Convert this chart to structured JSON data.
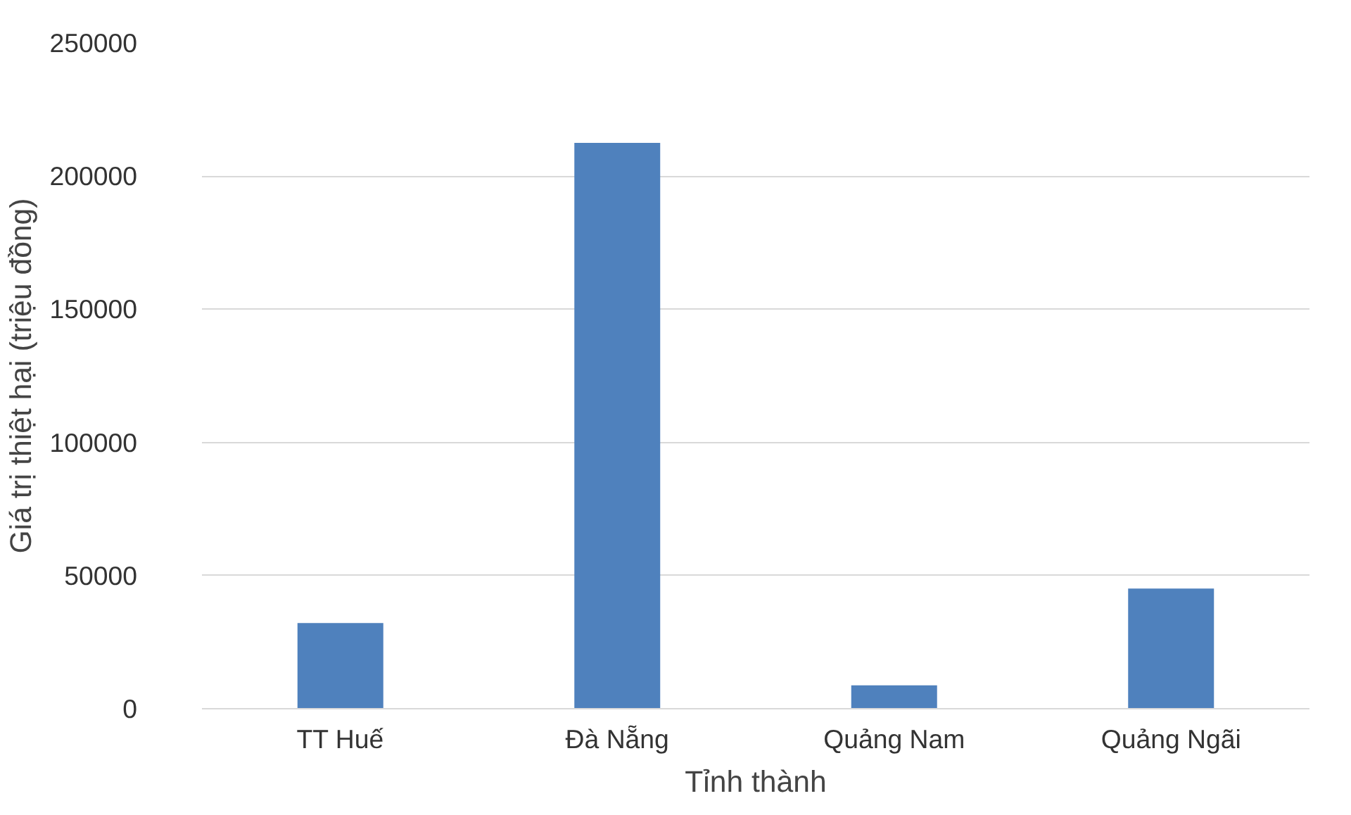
{
  "chart_data": {
    "type": "bar",
    "xlabel": "Tỉnh thành",
    "ylabel": "Giá trị thiệt hại (triệu đồng)",
    "categories": [
      "TT Huế",
      "Đà Nẵng",
      "Quảng Nam",
      "Quảng Ngãi"
    ],
    "values": [
      32200,
      212500,
      8800,
      45100
    ],
    "color": "#4f81bd",
    "ylim": [
      0,
      250000
    ],
    "yticks": [
      0,
      50000,
      100000,
      150000,
      200000,
      250000
    ],
    "grid": "y"
  }
}
